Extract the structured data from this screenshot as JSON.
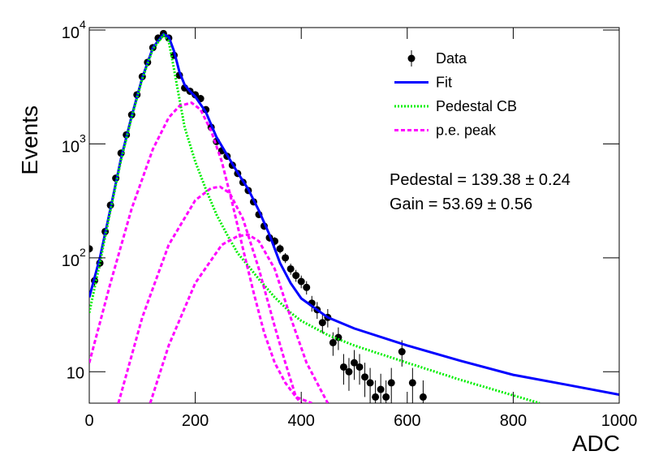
{
  "chart_data": {
    "type": "line",
    "log_y": true,
    "x_label": "ADC",
    "y_label": "Events",
    "xlim": [
      0,
      1000
    ],
    "ylim": [
      5.3,
      10500
    ],
    "xticks": [
      0,
      200,
      400,
      600,
      800,
      1000
    ],
    "yticks": [
      10,
      {
        "value": 100,
        "label": "10",
        "superscript": "2"
      },
      {
        "value": 1000,
        "label": "10",
        "superscript": "3"
      },
      {
        "value": 10000,
        "label": "10",
        "superscript": "4"
      }
    ],
    "annotations": [
      "Pedestal = 139.38 ± 0.24",
      "Gain = 53.69 ± 0.56"
    ],
    "series": [
      {
        "name": "Data",
        "color": "#000000",
        "style": "points",
        "x": [
          0,
          10,
          20,
          30,
          40,
          50,
          60,
          70,
          80,
          90,
          100,
          110,
          120,
          130,
          140,
          150,
          160,
          170,
          180,
          190,
          200,
          210,
          220,
          230,
          240,
          250,
          260,
          270,
          280,
          290,
          300,
          310,
          320,
          330,
          340,
          350,
          360,
          370,
          380,
          390,
          400,
          410,
          420,
          430,
          440,
          450,
          460,
          470,
          480,
          490,
          500,
          510,
          520,
          530,
          540,
          550,
          560,
          570,
          590,
          610,
          630
        ],
        "values": [
          120,
          63,
          90,
          170,
          290,
          500,
          830,
          1200,
          1800,
          2700,
          3900,
          5200,
          7000,
          8500,
          9300,
          8500,
          6000,
          4000,
          3100,
          2900,
          2700,
          2500,
          2000,
          1400,
          1050,
          870,
          780,
          650,
          550,
          460,
          390,
          310,
          240,
          190,
          150,
          140,
          120,
          100,
          80,
          70,
          62,
          55,
          40,
          35,
          27,
          30,
          18,
          20,
          11,
          10,
          12,
          11,
          9,
          8,
          6,
          7,
          6,
          8,
          15,
          8,
          6
        ],
        "errors": [
          11,
          7.9,
          9.5,
          13,
          17,
          22,
          29,
          35,
          42,
          52,
          62,
          72,
          84,
          92,
          96,
          92,
          77,
          63,
          56,
          54,
          52,
          50,
          45,
          37,
          32,
          29,
          28,
          25,
          23,
          21,
          20,
          18,
          15,
          14,
          12,
          12,
          11,
          10,
          8.9,
          8.4,
          7.9,
          7.4,
          6.3,
          5.9,
          5.2,
          5.5,
          4.2,
          4.5,
          3.3,
          3.2,
          3.5,
          3.3,
          3,
          2.8,
          2.4,
          2.6,
          2.4,
          2.8,
          3.9,
          2.8,
          2.4
        ]
      },
      {
        "name": "Fit",
        "color": "#0000ff",
        "style": "solid",
        "x": [
          0,
          20,
          40,
          60,
          80,
          100,
          120,
          140,
          150,
          160,
          170,
          180,
          190,
          200,
          220,
          240,
          260,
          280,
          300,
          320,
          340,
          350,
          360,
          380,
          400,
          450,
          500,
          600,
          700,
          800,
          900,
          1000
        ],
        "values": [
          45,
          100,
          270,
          750,
          1750,
          3800,
          7000,
          9200,
          8700,
          6500,
          4300,
          3300,
          2900,
          2600,
          1900,
          1150,
          800,
          560,
          400,
          260,
          160,
          120,
          90,
          60,
          44,
          30,
          24,
          17,
          12.5,
          9.4,
          7.7,
          6.3
        ]
      },
      {
        "name": "Pedestal CB",
        "color": "#00ee00",
        "style": "dotted",
        "x": [
          0,
          20,
          40,
          60,
          80,
          100,
          120,
          140,
          150,
          160,
          170,
          180,
          200,
          220,
          240,
          260,
          280,
          300,
          320,
          350,
          380,
          400,
          450,
          500,
          600,
          700,
          800,
          850
        ],
        "values": [
          33,
          90,
          260,
          720,
          1700,
          3700,
          6800,
          9000,
          8000,
          4500,
          2500,
          1400,
          700,
          400,
          240,
          160,
          110,
          85,
          65,
          45,
          33,
          28,
          21,
          17,
          12,
          8.5,
          6.2,
          5.3
        ]
      },
      {
        "name": "p.e. peak",
        "color": "#ff00ff",
        "style": "dashed",
        "components": [
          {
            "x": [
              0,
              40,
              80,
              120,
              150,
              170,
              193,
              210,
              230,
              250,
              270,
              290,
              310,
              330,
              350,
              370,
              390,
              420
            ],
            "values": [
              12,
              60,
              270,
              900,
              1700,
              2150,
              2300,
              2000,
              1300,
              700,
              300,
              120,
              50,
              22,
              12,
              8,
              6,
              5.3
            ]
          },
          {
            "x": [
              55,
              100,
              150,
              200,
              230,
              247,
              265,
              290,
              320,
              350,
              370,
              390,
              400
            ],
            "values": [
              5.3,
              30,
              130,
              320,
              410,
              420,
              370,
              220,
              80,
              25,
              12,
              6,
              5.3
            ]
          },
          {
            "x": [
              115,
              150,
              200,
              250,
              280,
              300,
              320,
              350,
              380,
              410,
              440,
              450
            ],
            "values": [
              5.3,
              17,
              60,
              130,
              155,
              160,
              140,
              80,
              30,
              12,
              6.5,
              5.3
            ]
          }
        ]
      }
    ]
  }
}
